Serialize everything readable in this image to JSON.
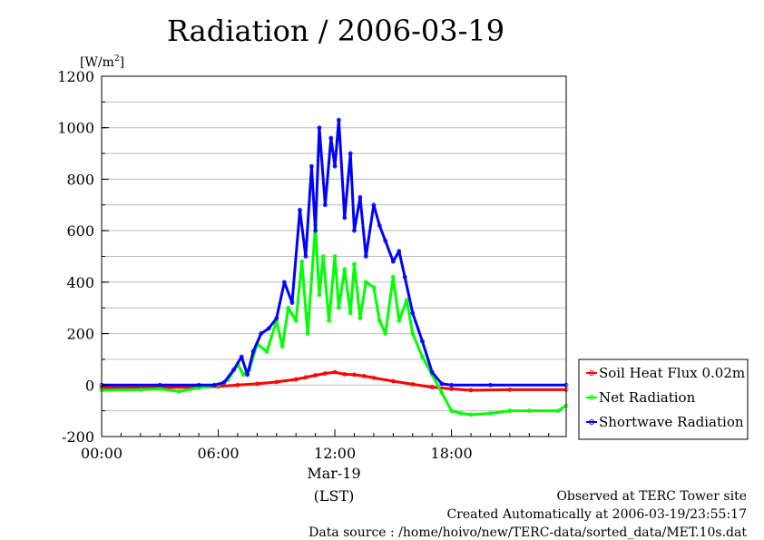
{
  "chart_data": {
    "type": "line",
    "title": "Radiation / 2006-03-19",
    "unit_label": "[W/m2]",
    "unit_base": "[W/m",
    "unit_sup": "2",
    "unit_close": "]",
    "x_ticks": [
      "00:00",
      "06:00",
      "12:00",
      "18:00"
    ],
    "x_date_label": "Mar-19",
    "x_axis_label": "(LST)",
    "ylim": [
      -200,
      1200
    ],
    "y_ticks": [
      -200,
      0,
      200,
      400,
      600,
      800,
      1000,
      1200
    ],
    "xlim_hours": [
      0,
      23.9
    ],
    "grid": true,
    "legend_position": "right",
    "series": [
      {
        "name": "Soil Heat Flux 0.02m",
        "color": "#ff0000",
        "x": [
          0,
          3,
          5,
          6,
          7,
          8,
          9,
          10,
          10.5,
          11,
          11.5,
          12,
          12.5,
          13,
          13.5,
          14,
          15,
          16,
          17,
          18,
          19,
          21,
          23.9
        ],
        "y": [
          -10,
          -10,
          -8,
          -5,
          0,
          5,
          12,
          22,
          30,
          38,
          45,
          50,
          42,
          40,
          35,
          28,
          15,
          3,
          -8,
          -15,
          -20,
          -18,
          -18
        ]
      },
      {
        "name": "Net Radiation",
        "color": "#00ff00",
        "x": [
          0,
          2,
          3,
          4,
          5,
          5.5,
          6,
          6.5,
          7,
          7.3,
          7.6,
          8,
          8.5,
          9,
          9.3,
          9.6,
          10,
          10.3,
          10.6,
          11,
          11.2,
          11.4,
          11.7,
          12,
          12.2,
          12.5,
          12.8,
          13,
          13.3,
          13.6,
          14,
          14.3,
          14.6,
          15,
          15.3,
          15.7,
          16,
          16.5,
          17,
          17.5,
          18,
          18.5,
          19,
          20,
          21,
          22,
          23.5,
          23.9
        ],
        "y": [
          -20,
          -18,
          -15,
          -25,
          -10,
          -5,
          0,
          20,
          80,
          40,
          60,
          160,
          130,
          250,
          150,
          300,
          250,
          480,
          200,
          620,
          350,
          500,
          250,
          500,
          300,
          450,
          280,
          470,
          260,
          400,
          380,
          250,
          200,
          420,
          250,
          330,
          200,
          110,
          40,
          -30,
          -100,
          -110,
          -115,
          -110,
          -100,
          -100,
          -100,
          -80
        ]
      },
      {
        "name": "Shortwave Radiation",
        "color": "#0000ff",
        "x": [
          0,
          3,
          5,
          5.8,
          6.3,
          6.8,
          7.2,
          7.5,
          7.8,
          8.2,
          8.6,
          9,
          9.4,
          9.8,
          10.2,
          10.5,
          10.8,
          11,
          11.2,
          11.5,
          11.8,
          12,
          12.2,
          12.5,
          12.8,
          13,
          13.3,
          13.6,
          14,
          14.3,
          14.6,
          15,
          15.3,
          15.6,
          16,
          16.5,
          17,
          17.5,
          18,
          20,
          23.9
        ],
        "y": [
          0,
          0,
          0,
          0,
          10,
          60,
          110,
          40,
          130,
          200,
          220,
          260,
          400,
          320,
          680,
          500,
          850,
          600,
          1000,
          700,
          960,
          850,
          1030,
          650,
          900,
          600,
          730,
          500,
          700,
          620,
          560,
          480,
          520,
          420,
          280,
          170,
          50,
          5,
          0,
          0,
          0
        ]
      }
    ]
  },
  "footer": {
    "line1": "Observed at TERC Tower site",
    "line2": "Created Automatically at 2006-03-19/23:55:17",
    "line3": "Data source : /home/hoivo/new/TERC-data/sorted_data/MET.10s.dat"
  }
}
